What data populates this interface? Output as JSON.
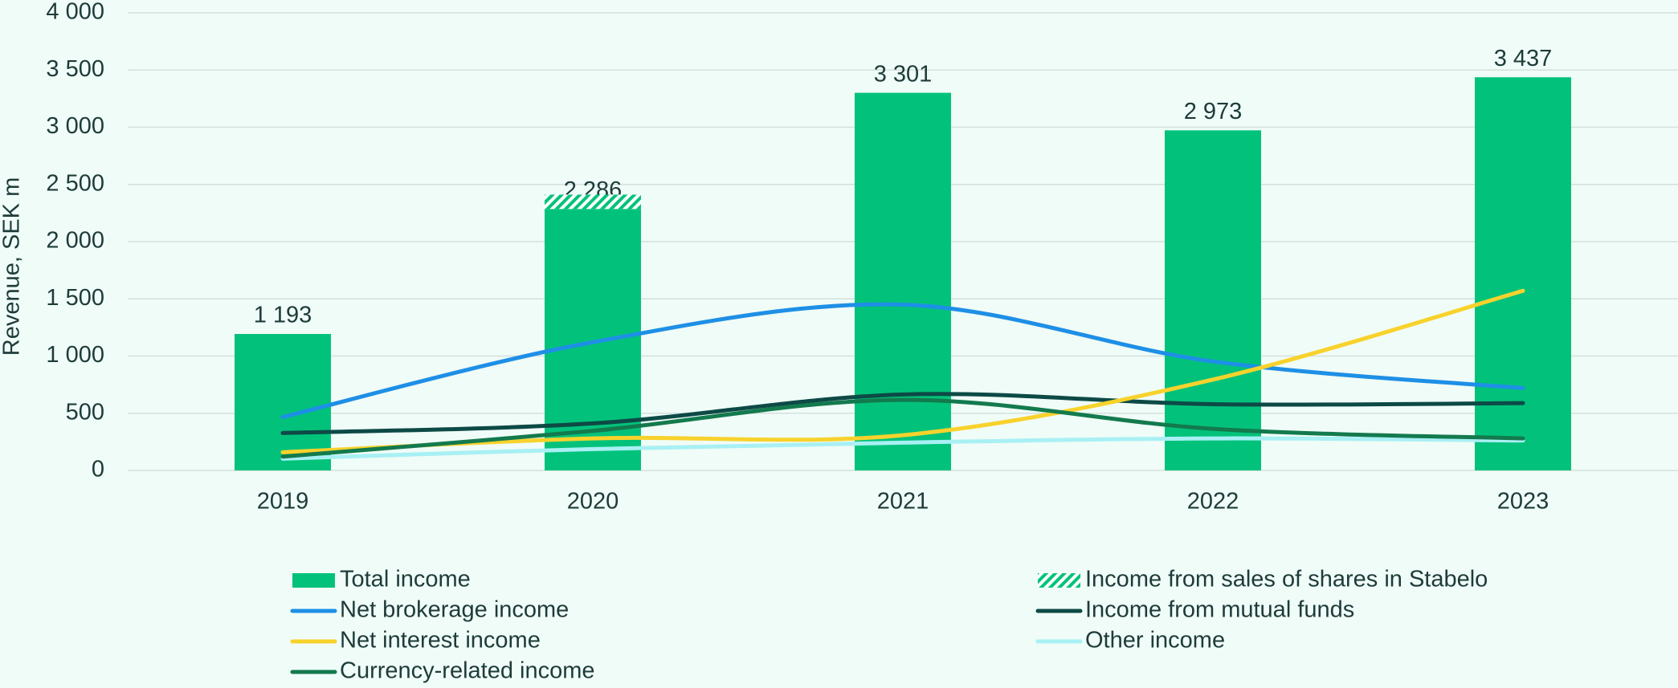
{
  "chart_data": {
    "type": "combo",
    "ylabel": "Revenue, SEK m",
    "categories": [
      "2019",
      "2020",
      "2021",
      "2022",
      "2023"
    ],
    "ylim": [
      0,
      4000
    ],
    "yticks": [
      0,
      500,
      {
        "value": 1000,
        "label": "1 000"
      },
      {
        "value": 1500,
        "label": "1 500"
      },
      {
        "value": 2000,
        "label": "2 000"
      },
      {
        "value": 2500,
        "label": "2 500"
      },
      {
        "value": 3000,
        "label": "3 000"
      },
      {
        "value": 3500,
        "label": "3 500"
      },
      {
        "value": 4000,
        "label": "4 000"
      }
    ],
    "grid": true,
    "series": [
      {
        "name": "Total income",
        "type": "bar",
        "color": "#02c27b",
        "values": [
          1193,
          2286,
          3301,
          2973,
          3437
        ],
        "value_labels": [
          "1 193",
          "2 286",
          "3 301",
          "2 973",
          "3 437"
        ]
      },
      {
        "name": "Income from sales of shares in Stabelo",
        "type": "bar",
        "pattern": "hatch",
        "color": "#02c27b",
        "values": [
          null,
          125,
          null,
          null,
          null
        ]
      },
      {
        "name": "Net brokerage income",
        "type": "line",
        "color": "#1e8fe6",
        "values": [
          467,
          1121,
          1449,
          953,
          720
        ]
      },
      {
        "name": "Income from mutual funds",
        "type": "line",
        "color": "#0d4a46",
        "values": [
          327,
          411,
          664,
          579,
          589
        ]
      },
      {
        "name": "Net interest income",
        "type": "line",
        "color": "#f8d22c",
        "values": [
          159,
          280,
          308,
          794,
          1570
        ]
      },
      {
        "name": "Other income",
        "type": "line",
        "color": "#a8f0f4",
        "values": [
          103,
          187,
          243,
          280,
          262
        ]
      },
      {
        "name": "Currency-related income",
        "type": "line",
        "color": "#137a4e",
        "values": [
          121,
          346,
          617,
          364,
          280
        ]
      }
    ]
  }
}
